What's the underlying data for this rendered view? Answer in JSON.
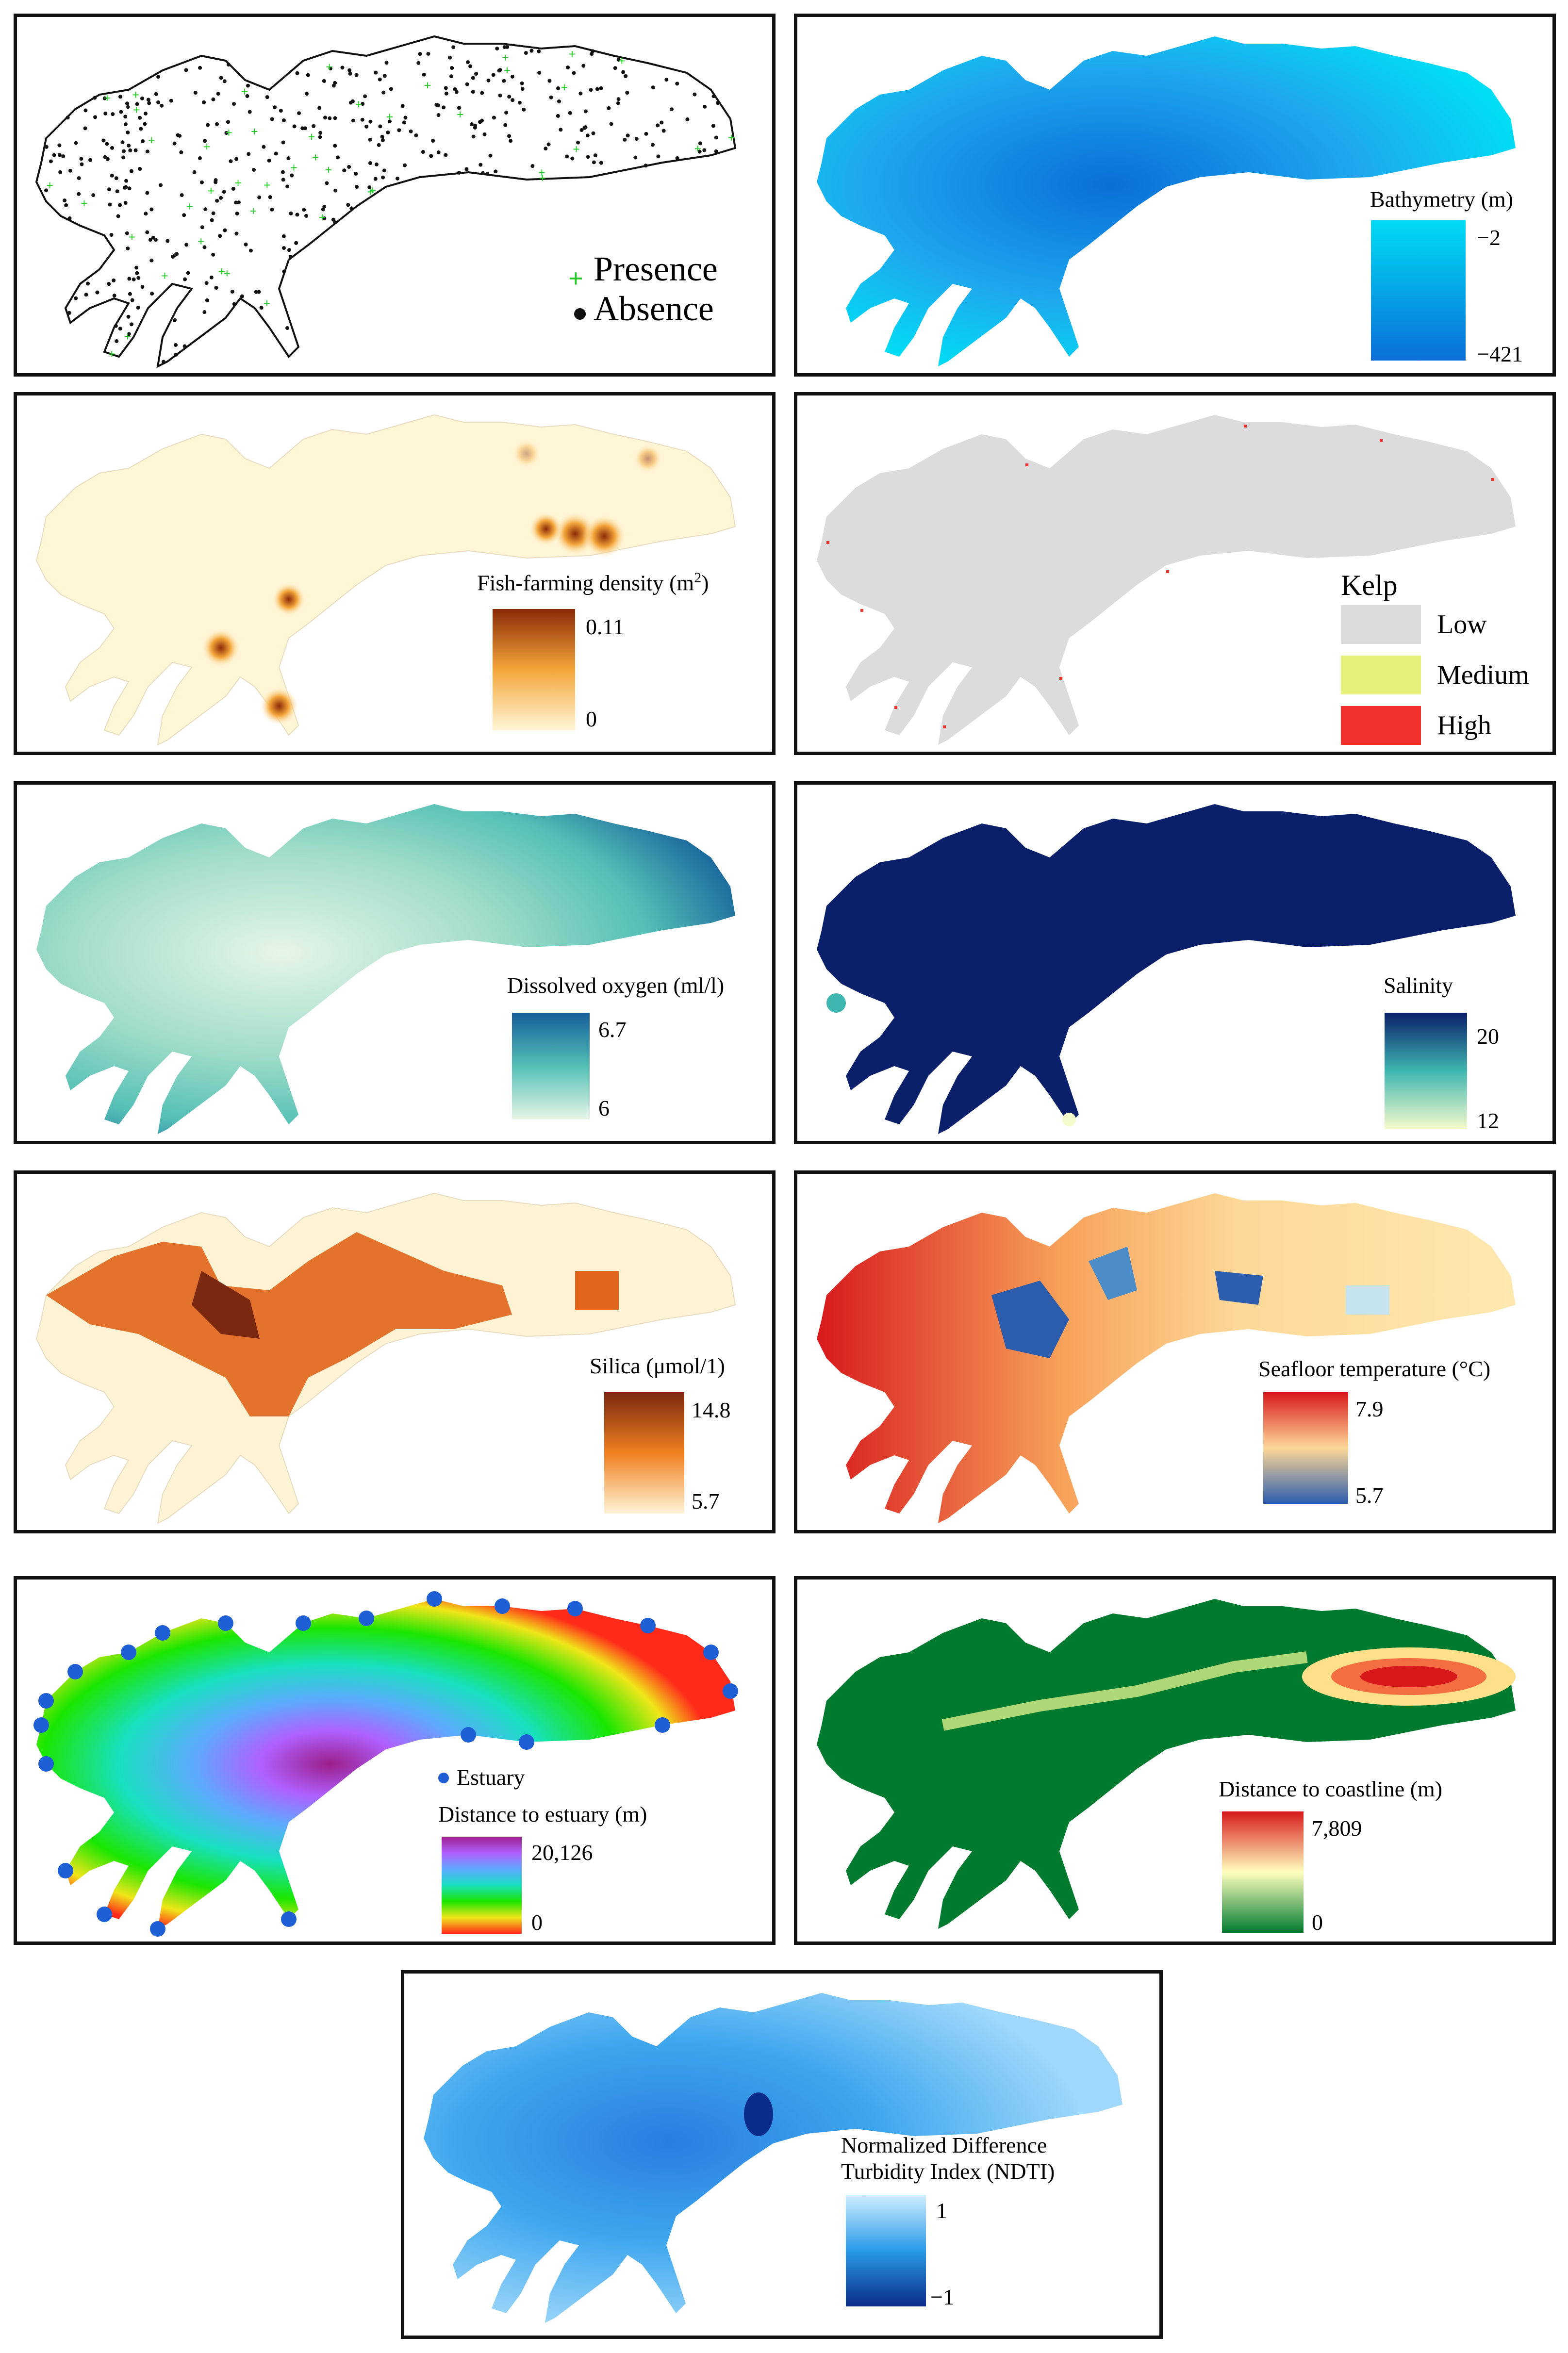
{
  "panels": {
    "occurrence": {
      "presence_label": "Presence",
      "absence_label": "Absence",
      "presence_color": "#22cc22",
      "absence_color": "#111111"
    },
    "bathymetry": {
      "title": "Bathymetry (m)",
      "max_label": "−2",
      "min_label": "−421",
      "colors": [
        "#00ddf5",
        "#0a6fd8"
      ]
    },
    "fish_farming": {
      "title_main": "Fish-farming density (m",
      "title_sup": "2",
      "title_end": ")",
      "max_label": "0.11",
      "min_label": "0",
      "colors": [
        "#fff6d6",
        "#f4a63a",
        "#8a2a08"
      ]
    },
    "kelp": {
      "title": "Kelp",
      "classes": [
        {
          "label": "Low",
          "color": "#dcdcdc"
        },
        {
          "label": "Medium",
          "color": "#e6f07a"
        },
        {
          "label": "High",
          "color": "#f0302a"
        }
      ]
    },
    "dissolved_oxygen": {
      "title": "Dissolved oxygen (ml/l)",
      "max_label": "6.7",
      "min_label": "6",
      "colors": [
        "#e6f5e8",
        "#55c0b6",
        "#145e9a"
      ]
    },
    "salinity": {
      "title": "Salinity",
      "max_label": "20",
      "min_label": "12",
      "colors": [
        "#f6fbcc",
        "#3fb6b0",
        "#0a1f6a"
      ]
    },
    "silica": {
      "title": "Silica (μmol/1)",
      "max_label": "14.8",
      "min_label": "5.7",
      "colors": [
        "#fff3d6",
        "#f08020",
        "#7a2810"
      ]
    },
    "temperature": {
      "title": "Seafloor temperature (°C)",
      "max_label": "7.9",
      "min_label": "5.7",
      "colors": [
        "#d7191c",
        "#fdd897",
        "#2c5cac"
      ]
    },
    "estuary": {
      "point_label": "Estuary",
      "title": "Distance to estuary (m)",
      "max_label": "20,126",
      "min_label": "0",
      "colors": [
        "#ff2a1a",
        "#f0e61a",
        "#1ae600",
        "#18e0c0",
        "#5fa8ff",
        "#b060ff",
        "#9a1f8a"
      ]
    },
    "coastline": {
      "title": "Distance to coastline (m)",
      "max_label": "7,809",
      "min_label": "0",
      "colors": [
        "#007a2e",
        "#ffffbf",
        "#d7191c"
      ]
    },
    "ndti": {
      "title_line1": "Normalized Difference",
      "title_line2": "Turbidity Index (NDTI)",
      "max_label": "1",
      "min_label": "−1",
      "colors": [
        "#cfeeff",
        "#2a9ae8",
        "#0a2c8a"
      ]
    }
  }
}
